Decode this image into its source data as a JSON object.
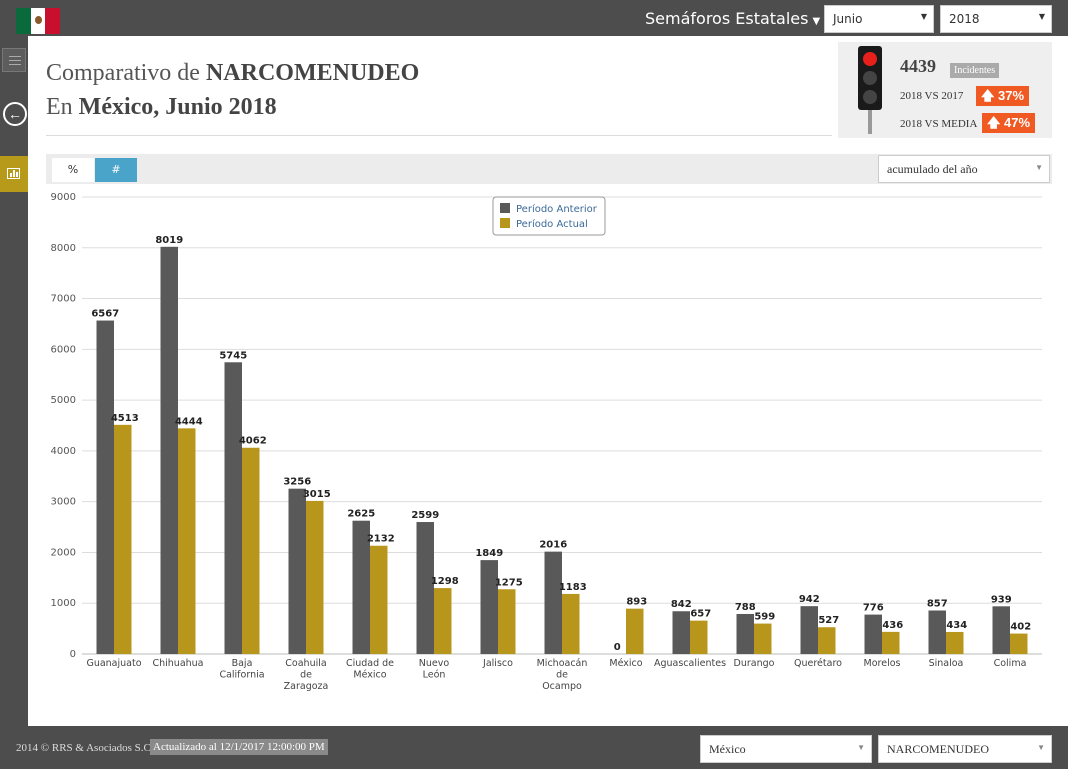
{
  "header": {
    "nav_title": "Semáforos Estatales",
    "month": "Junio",
    "year": "2018"
  },
  "title": {
    "line1_prefix": "Comparativo de ",
    "line1_bold": "NARCOMENUDEO",
    "line2_prefix": "En ",
    "line2_bold": "México, Junio 2018"
  },
  "semaforo": {
    "count": "4439",
    "count_label": "Incidentes",
    "cmp1_label": "2018 VS 2017",
    "cmp1_value": "37%",
    "cmp2_label": "2018 VS MEDIA",
    "cmp2_value": "47%",
    "status_color": "#e8201c"
  },
  "toolbar": {
    "pct_label": "%",
    "num_label": "#",
    "range": "acumulado del año"
  },
  "footer": {
    "copyright": "2014 © RRS & Asociados S.C.",
    "updated": "Actualizado al 12/1/2017 12:00:00 PM",
    "state": "México",
    "crime": "NARCOMENUDEO"
  },
  "colors": {
    "anterior": "#595959",
    "actual": "#b8961c",
    "up_badge": "#f05a22",
    "active_toggle": "#4aa3c9"
  },
  "chart_data": {
    "type": "bar",
    "categories": [
      [
        "Guanajuato"
      ],
      [
        "Chihuahua"
      ],
      [
        "Baja",
        "California"
      ],
      [
        "Coahuila",
        "de",
        "Zaragoza"
      ],
      [
        "Ciudad de",
        "México"
      ],
      [
        "Nuevo",
        "León"
      ],
      [
        "Jalisco"
      ],
      [
        "Michoacán",
        "de",
        "Ocampo"
      ],
      [
        "México"
      ],
      [
        "Aguascalientes"
      ],
      [
        "Durango"
      ],
      [
        "Querétaro"
      ],
      [
        "Morelos"
      ],
      [
        "Sinaloa"
      ],
      [
        "Colima"
      ]
    ],
    "series": [
      {
        "name": "Período Anterior",
        "values": [
          6567,
          8019,
          5745,
          3256,
          2625,
          2599,
          1849,
          2016,
          0,
          842,
          788,
          942,
          776,
          857,
          939
        ]
      },
      {
        "name": "Período Actual",
        "values": [
          4513,
          4444,
          4062,
          3015,
          2132,
          1298,
          1275,
          1183,
          893,
          657,
          599,
          527,
          436,
          434,
          402
        ]
      }
    ],
    "ylim": [
      0,
      9000
    ],
    "yticks": [
      0,
      1000,
      2000,
      3000,
      4000,
      5000,
      6000,
      7000,
      8000,
      9000
    ],
    "grid": true,
    "legend_position": "top-center"
  }
}
